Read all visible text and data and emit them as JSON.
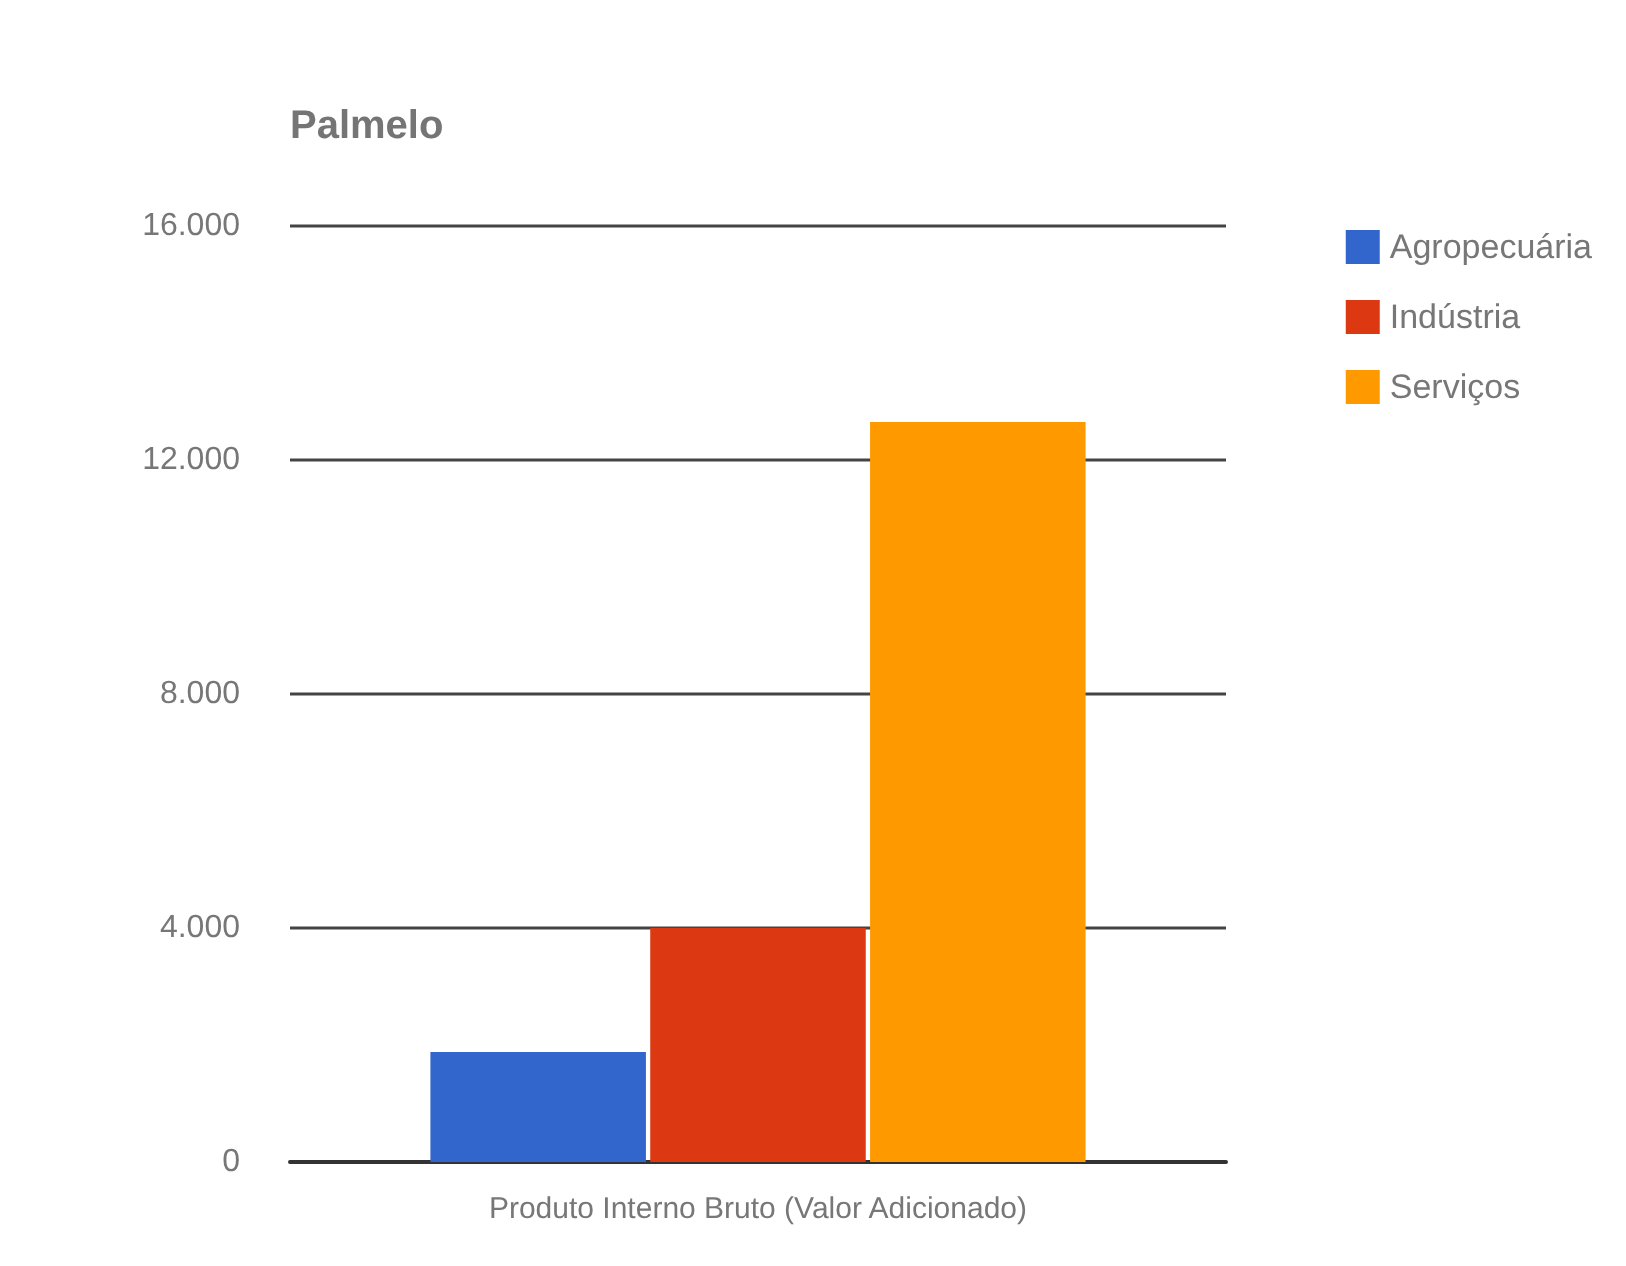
{
  "chart_data": {
    "type": "bar",
    "title": "Palmelo",
    "categories": [
      "Produto Interno Bruto (Valor Adicionado)"
    ],
    "series": [
      {
        "name": "Agropecuária",
        "color": "#3366cc",
        "values": [
          1880
        ]
      },
      {
        "name": "Indústria",
        "color": "#dc3912",
        "values": [
          4000
        ]
      },
      {
        "name": "Serviços",
        "color": "#ff9900",
        "values": [
          12650
        ]
      }
    ],
    "ylim": [
      0,
      16000
    ],
    "yticks": [
      {
        "value": 0,
        "label": "0"
      },
      {
        "value": 4000,
        "label": "4.000"
      },
      {
        "value": 8000,
        "label": "8.000"
      },
      {
        "value": 12000,
        "label": "12.000"
      },
      {
        "value": 16000,
        "label": "16.000"
      }
    ],
    "grid": "y",
    "legend": "top right"
  }
}
